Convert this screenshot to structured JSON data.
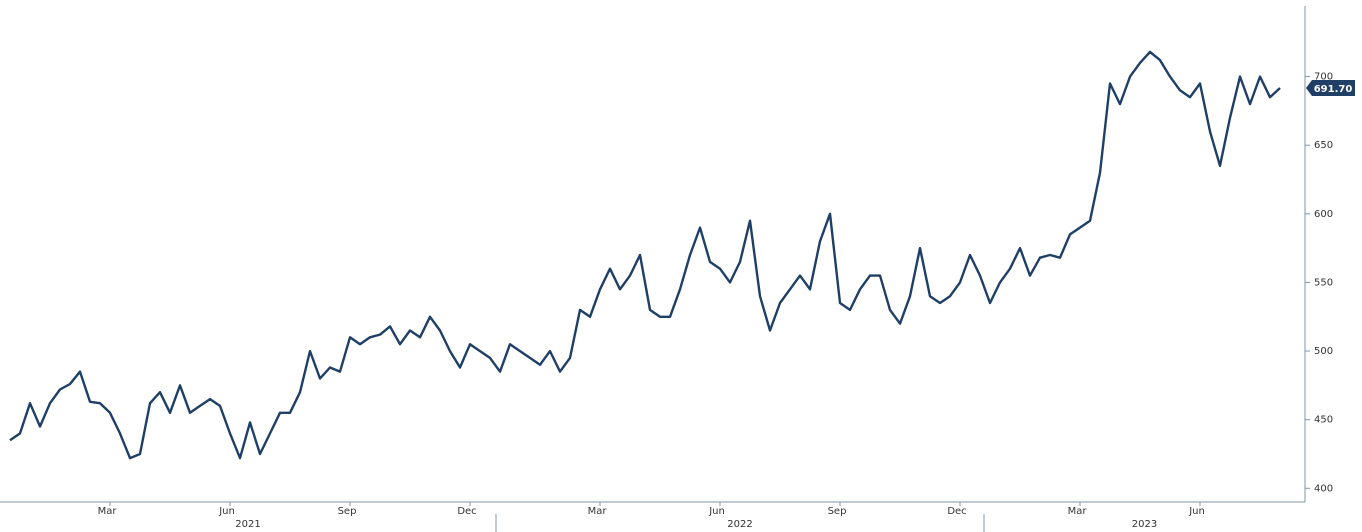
{
  "chart_data": {
    "type": "line",
    "color": "#1f3f66",
    "categories": [
      null,
      null,
      null,
      null,
      null,
      null,
      null,
      null,
      null,
      null,
      "Mar",
      null,
      null,
      null,
      null,
      null,
      null,
      null,
      null,
      null,
      null,
      null,
      "Jun",
      null,
      null,
      null,
      null,
      null,
      null,
      null,
      null,
      null,
      null,
      null,
      "Sep",
      null,
      null,
      null,
      null,
      null,
      null,
      null,
      null,
      null,
      null,
      null,
      "Dec",
      null,
      null,
      null,
      null,
      null,
      null,
      null,
      null,
      null,
      null,
      null,
      null,
      "Mar",
      null,
      null,
      null,
      null,
      null,
      null,
      null,
      null,
      null,
      null,
      null,
      "Jun",
      null,
      null,
      null,
      null,
      null,
      null,
      null,
      null,
      null,
      null,
      null,
      "Sep",
      null,
      null,
      null,
      null,
      null,
      null,
      null,
      null,
      null,
      null,
      null,
      "Dec",
      null,
      null,
      null,
      null,
      null,
      null,
      null,
      null,
      null,
      null,
      null,
      "Mar",
      null,
      null,
      null,
      null,
      null,
      null,
      null,
      null,
      null,
      null,
      null,
      "Jun",
      null,
      null,
      null,
      null,
      null,
      null,
      null,
      null
    ],
    "years": [
      "2021",
      "2022",
      "2023"
    ],
    "values": [
      435,
      440,
      462,
      445,
      462,
      472,
      476,
      485,
      463,
      462,
      455,
      440,
      422,
      425,
      462,
      470,
      455,
      475,
      455,
      460,
      465,
      460,
      440,
      422,
      448,
      425,
      440,
      455,
      455,
      470,
      500,
      480,
      488,
      485,
      510,
      505,
      510,
      512,
      518,
      505,
      515,
      510,
      525,
      515,
      500,
      488,
      505,
      500,
      495,
      485,
      505,
      500,
      495,
      490,
      500,
      485,
      495,
      530,
      525,
      545,
      560,
      545,
      555,
      570,
      530,
      525,
      525,
      545,
      570,
      590,
      565,
      560,
      550,
      565,
      595,
      540,
      515,
      535,
      545,
      555,
      545,
      580,
      600,
      535,
      530,
      545,
      555,
      555,
      530,
      520,
      540,
      575,
      540,
      535,
      540,
      550,
      570,
      555,
      535,
      550,
      560,
      575,
      555,
      568,
      570,
      568,
      585,
      590,
      595,
      630,
      695,
      680,
      700,
      710,
      718,
      712,
      700,
      690,
      685,
      695,
      660,
      635,
      670,
      700,
      680,
      700,
      685,
      691.7
    ],
    "last_value_label": "691.70",
    "ylim": [
      390,
      750
    ],
    "yticks": [
      400,
      450,
      500,
      550,
      600,
      650,
      700
    ]
  }
}
